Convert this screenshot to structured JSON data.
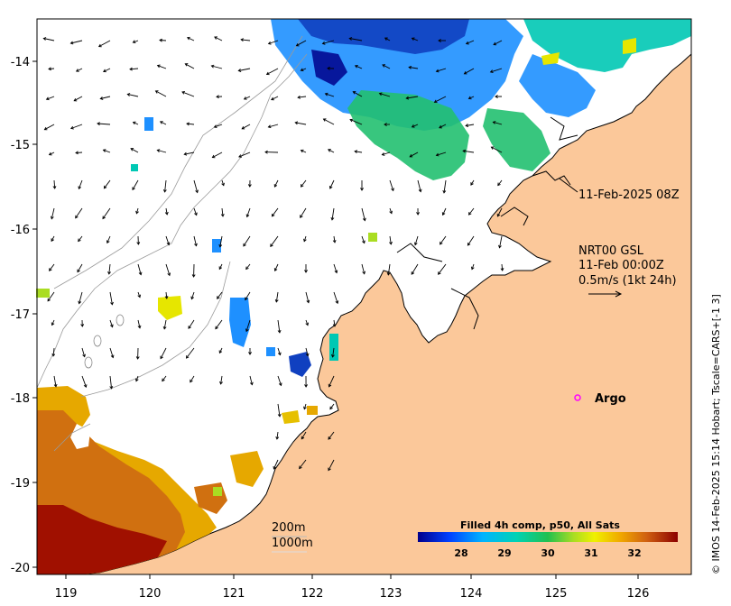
{
  "map": {
    "x_ticks": [
      "119",
      "120",
      "121",
      "122",
      "123",
      "124",
      "125",
      "126"
    ],
    "y_ticks": [
      "-14",
      "-15",
      "-16",
      "-17",
      "-18",
      "-19",
      "-20"
    ],
    "annotation_time": "11-Feb-2025 08Z",
    "current_label_line1": "NRT00 GSL",
    "current_label_line2": "11-Feb 00:00Z",
    "current_label_line3": "0.5m/s (1kt 24h)",
    "argo_label": "Argo",
    "depth_200": "200m",
    "depth_1000": "1000m",
    "colorbar_title": "Filled 4h comp, p50, All Sats",
    "colorbar_ticks": [
      "28",
      "29",
      "30",
      "31",
      "32"
    ],
    "side_text": "© IMOS 14-Feb-2025 15:14 Hobart; Tscale=CARS+[-1 3]",
    "colors": {
      "land": "#fbc89a",
      "argo": "#ff00ff",
      "sst_cold": "#00008b",
      "sst_mid": "#00c8b4",
      "sst_warm": "#e6a800",
      "sst_hot": "#a01000"
    }
  }
}
